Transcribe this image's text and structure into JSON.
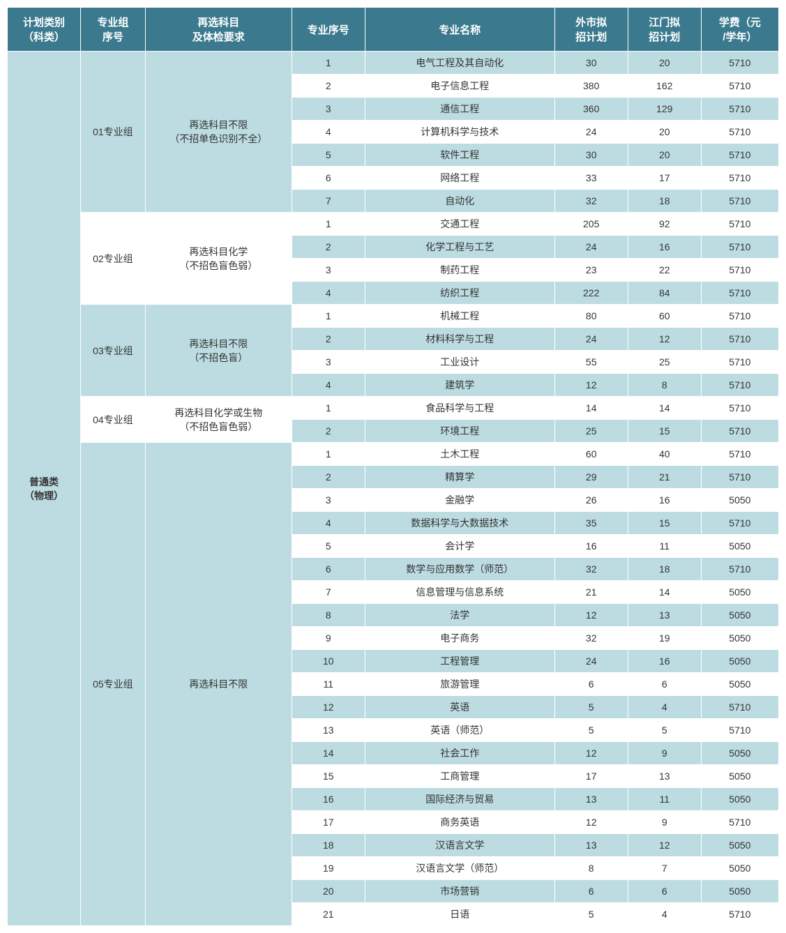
{
  "colors": {
    "header_bg": "#3b7a8e",
    "header_fg": "#ffffff",
    "row_blue": "#bcdce1",
    "row_white": "#ffffff",
    "border": "#ffffff",
    "text": "#333333"
  },
  "typography": {
    "header_fontsize_pt": 15,
    "body_fontsize_pt": 14,
    "font_family": "Microsoft YaHei"
  },
  "columns": [
    {
      "key": "category",
      "label": "计划类别\n（科类）",
      "width_pct": 8.5
    },
    {
      "key": "group",
      "label": "专业组\n序号",
      "width_pct": 7.5
    },
    {
      "key": "req",
      "label": "再选科目\n及体检要求",
      "width_pct": 17
    },
    {
      "key": "seq",
      "label": "专业序号",
      "width_pct": 8.5
    },
    {
      "key": "name",
      "label": "专业名称",
      "width_pct": 22
    },
    {
      "key": "plan1",
      "label": "外市拟\n招计划",
      "width_pct": 8.5
    },
    {
      "key": "plan2",
      "label": "江门拟\n招计划",
      "width_pct": 8.5
    },
    {
      "key": "fee",
      "label": "学费（元\n/学年）",
      "width_pct": 9
    }
  ],
  "category": "普通类\n（物理）",
  "groups": [
    {
      "group_no": "01专业组",
      "group_bg": "blue",
      "req": "再选科目不限\n（不招单色识别不全）",
      "req_bg": "blue",
      "rows": [
        {
          "seq": 1,
          "name": "电气工程及其自动化",
          "plan1": 30,
          "plan2": 20,
          "fee": 5710,
          "bg": "blue"
        },
        {
          "seq": 2,
          "name": "电子信息工程",
          "plan1": 380,
          "plan2": 162,
          "fee": 5710,
          "bg": "white"
        },
        {
          "seq": 3,
          "name": "通信工程",
          "plan1": 360,
          "plan2": 129,
          "fee": 5710,
          "bg": "blue"
        },
        {
          "seq": 4,
          "name": "计算机科学与技术",
          "plan1": 24,
          "plan2": 20,
          "fee": 5710,
          "bg": "white"
        },
        {
          "seq": 5,
          "name": "软件工程",
          "plan1": 30,
          "plan2": 20,
          "fee": 5710,
          "bg": "blue"
        },
        {
          "seq": 6,
          "name": "网络工程",
          "plan1": 33,
          "plan2": 17,
          "fee": 5710,
          "bg": "white"
        },
        {
          "seq": 7,
          "name": "自动化",
          "plan1": 32,
          "plan2": 18,
          "fee": 5710,
          "bg": "blue"
        }
      ]
    },
    {
      "group_no": "02专业组",
      "group_bg": "white",
      "req": "再选科目化学\n（不招色盲色弱）",
      "req_bg": "white",
      "rows": [
        {
          "seq": 1,
          "name": "交通工程",
          "plan1": 205,
          "plan2": 92,
          "fee": 5710,
          "bg": "white"
        },
        {
          "seq": 2,
          "name": "化学工程与工艺",
          "plan1": 24,
          "plan2": 16,
          "fee": 5710,
          "bg": "blue"
        },
        {
          "seq": 3,
          "name": "制药工程",
          "plan1": 23,
          "plan2": 22,
          "fee": 5710,
          "bg": "white"
        },
        {
          "seq": 4,
          "name": "纺织工程",
          "plan1": 222,
          "plan2": 84,
          "fee": 5710,
          "bg": "blue"
        }
      ]
    },
    {
      "group_no": "03专业组",
      "group_bg": "blue",
      "req": "再选科目不限\n（不招色盲）",
      "req_bg": "blue",
      "rows": [
        {
          "seq": 1,
          "name": "机械工程",
          "plan1": 80,
          "plan2": 60,
          "fee": 5710,
          "bg": "white"
        },
        {
          "seq": 2,
          "name": "材料科学与工程",
          "plan1": 24,
          "plan2": 12,
          "fee": 5710,
          "bg": "blue"
        },
        {
          "seq": 3,
          "name": "工业设计",
          "plan1": 55,
          "plan2": 25,
          "fee": 5710,
          "bg": "white"
        },
        {
          "seq": 4,
          "name": "建筑学",
          "plan1": 12,
          "plan2": 8,
          "fee": 5710,
          "bg": "blue"
        }
      ]
    },
    {
      "group_no": "04专业组",
      "group_bg": "white",
      "req": "再选科目化学或生物\n（不招色盲色弱）",
      "req_bg": "white",
      "rows": [
        {
          "seq": 1,
          "name": "食品科学与工程",
          "plan1": 14,
          "plan2": 14,
          "fee": 5710,
          "bg": "white"
        },
        {
          "seq": 2,
          "name": "环境工程",
          "plan1": 25,
          "plan2": 15,
          "fee": 5710,
          "bg": "blue"
        }
      ]
    },
    {
      "group_no": "05专业组",
      "group_bg": "blue",
      "req": "再选科目不限",
      "req_bg": "blue",
      "rows": [
        {
          "seq": 1,
          "name": "土木工程",
          "plan1": 60,
          "plan2": 40,
          "fee": 5710,
          "bg": "white"
        },
        {
          "seq": 2,
          "name": "精算学",
          "plan1": 29,
          "plan2": 21,
          "fee": 5710,
          "bg": "blue"
        },
        {
          "seq": 3,
          "name": "金融学",
          "plan1": 26,
          "plan2": 16,
          "fee": 5050,
          "bg": "white"
        },
        {
          "seq": 4,
          "name": "数据科学与大数据技术",
          "plan1": 35,
          "plan2": 15,
          "fee": 5710,
          "bg": "blue"
        },
        {
          "seq": 5,
          "name": "会计学",
          "plan1": 16,
          "plan2": 11,
          "fee": 5050,
          "bg": "white"
        },
        {
          "seq": 6,
          "name": "数学与应用数学（师范）",
          "plan1": 32,
          "plan2": 18,
          "fee": 5710,
          "bg": "blue"
        },
        {
          "seq": 7,
          "name": "信息管理与信息系统",
          "plan1": 21,
          "plan2": 14,
          "fee": 5050,
          "bg": "white"
        },
        {
          "seq": 8,
          "name": "法学",
          "plan1": 12,
          "plan2": 13,
          "fee": 5050,
          "bg": "blue"
        },
        {
          "seq": 9,
          "name": "电子商务",
          "plan1": 32,
          "plan2": 19,
          "fee": 5050,
          "bg": "white"
        },
        {
          "seq": 10,
          "name": "工程管理",
          "plan1": 24,
          "plan2": 16,
          "fee": 5050,
          "bg": "blue"
        },
        {
          "seq": 11,
          "name": "旅游管理",
          "plan1": 6,
          "plan2": 6,
          "fee": 5050,
          "bg": "white"
        },
        {
          "seq": 12,
          "name": "英语",
          "plan1": 5,
          "plan2": 4,
          "fee": 5710,
          "bg": "blue"
        },
        {
          "seq": 13,
          "name": "英语（师范）",
          "plan1": 5,
          "plan2": 5,
          "fee": 5710,
          "bg": "white"
        },
        {
          "seq": 14,
          "name": "社会工作",
          "plan1": 12,
          "plan2": 9,
          "fee": 5050,
          "bg": "blue"
        },
        {
          "seq": 15,
          "name": "工商管理",
          "plan1": 17,
          "plan2": 13,
          "fee": 5050,
          "bg": "white"
        },
        {
          "seq": 16,
          "name": "国际经济与贸易",
          "plan1": 13,
          "plan2": 11,
          "fee": 5050,
          "bg": "blue"
        },
        {
          "seq": 17,
          "name": "商务英语",
          "plan1": 12,
          "plan2": 9,
          "fee": 5710,
          "bg": "white"
        },
        {
          "seq": 18,
          "name": "汉语言文学",
          "plan1": 13,
          "plan2": 12,
          "fee": 5050,
          "bg": "blue"
        },
        {
          "seq": 19,
          "name": "汉语言文学（师范）",
          "plan1": 8,
          "plan2": 7,
          "fee": 5050,
          "bg": "white"
        },
        {
          "seq": 20,
          "name": "市场营销",
          "plan1": 6,
          "plan2": 6,
          "fee": 5050,
          "bg": "blue"
        },
        {
          "seq": 21,
          "name": "日语",
          "plan1": 5,
          "plan2": 4,
          "fee": 5710,
          "bg": "white"
        }
      ]
    }
  ]
}
